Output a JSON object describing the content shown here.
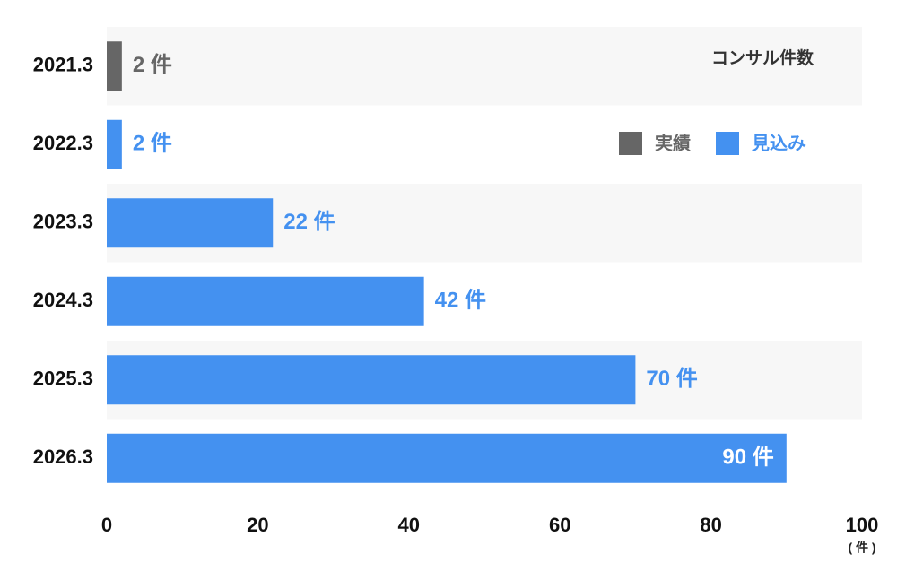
{
  "chart_data": {
    "type": "bar",
    "orientation": "horizontal",
    "title": "コンサル件数",
    "categories": [
      "2021.3",
      "2022.3",
      "2023.3",
      "2024.3",
      "2025.3",
      "2026.3"
    ],
    "series": [
      {
        "name": "実績",
        "color": "#666666",
        "values": [
          2,
          null,
          null,
          null,
          null,
          null
        ],
        "value_labels": [
          "2 件",
          null,
          null,
          null,
          null,
          null
        ]
      },
      {
        "name": "見込み",
        "color": "#4491f0",
        "values": [
          null,
          2,
          22,
          42,
          70,
          90
        ],
        "value_labels": [
          null,
          "2 件",
          "22 件",
          "42 件",
          "70 件",
          "90 件"
        ]
      }
    ],
    "xlim": [
      0,
      100
    ],
    "xticks": [
      0,
      20,
      40,
      60,
      80,
      100
    ],
    "x_unit_label": "( 件 )",
    "legend": "top-right"
  }
}
